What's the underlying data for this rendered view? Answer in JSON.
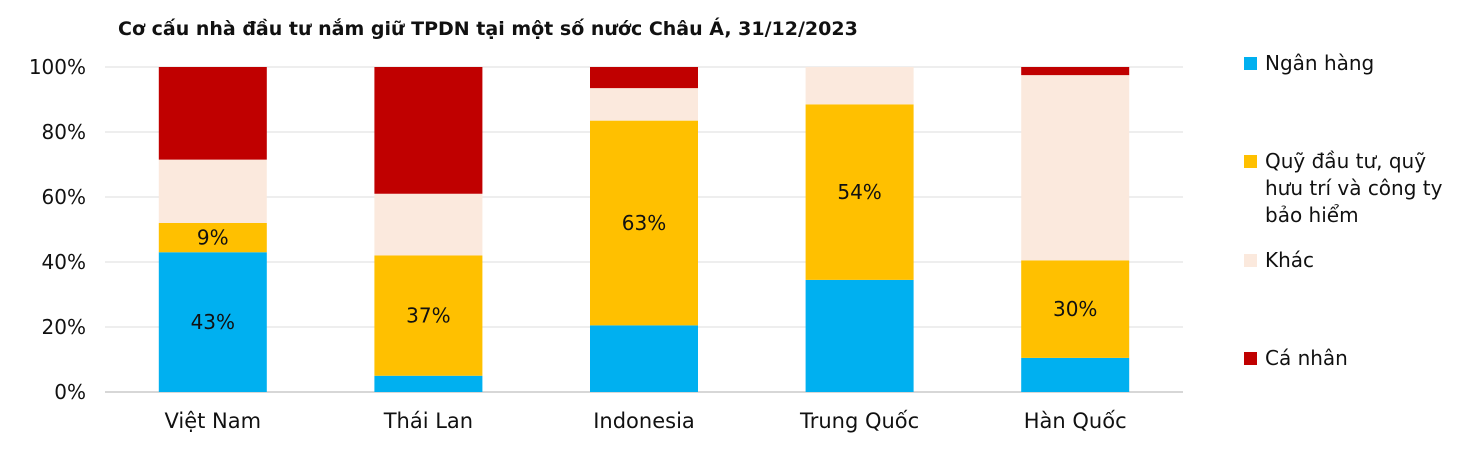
{
  "chart_data": {
    "type": "bar",
    "stacked": true,
    "title": "Cơ cấu nhà đầu tư nắm giữ TPDN tại một số nước Châu Á, 31/12/2023",
    "xlabel": "",
    "ylabel": "",
    "ylim": [
      0,
      100
    ],
    "yticks": [
      "0%",
      "20%",
      "40%",
      "60%",
      "80%",
      "100%"
    ],
    "grid": true,
    "legend_position": "right",
    "categories": [
      "Việt Nam",
      "Thái Lan",
      "Indonesia",
      "Trung Quốc",
      "Hàn Quốc"
    ],
    "series": [
      {
        "name": "Ngân hàng",
        "color": "#00B0F0",
        "values": [
          43,
          5,
          20.5,
          34.5,
          10.5
        ],
        "labels": [
          "43%",
          "",
          "",
          "",
          ""
        ]
      },
      {
        "name": "Quỹ đầu tư, quỹ hưu trí và công ty bảo hiểm",
        "color": "#FFC000",
        "values": [
          9,
          37,
          63,
          54,
          30
        ],
        "labels": [
          "9%",
          "37%",
          "63%",
          "54%",
          "30%"
        ]
      },
      {
        "name": "Khác",
        "color": "#FBE9DD",
        "values": [
          19.5,
          19,
          10,
          11.5,
          57
        ],
        "labels": [
          "",
          "",
          "",
          "",
          ""
        ]
      },
      {
        "name": "Cá nhân",
        "color": "#C00000",
        "values": [
          28.5,
          39,
          6.5,
          0,
          2.5
        ],
        "labels": [
          "",
          "",
          "",
          "",
          ""
        ]
      }
    ]
  }
}
